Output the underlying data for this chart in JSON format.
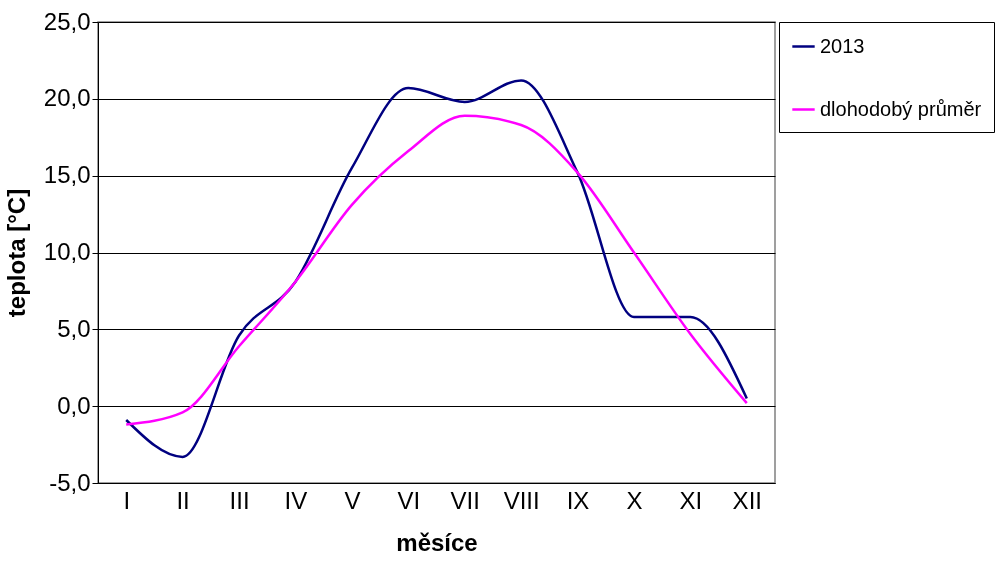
{
  "chart_data": {
    "type": "line",
    "xlabel": "měsíce",
    "ylabel": "teplota [°C]",
    "categories": [
      "I",
      "II",
      "III",
      "IV",
      "V",
      "VI",
      "VII",
      "VIII",
      "IX",
      "X",
      "XI",
      "XII"
    ],
    "series": [
      {
        "name": "2013",
        "color": "#000080",
        "values": [
          -0.9,
          -3.3,
          4.6,
          8.1,
          15.5,
          20.7,
          19.8,
          21.2,
          15.2,
          5.8,
          5.8,
          0.5
        ]
      },
      {
        "name": "dlohodobý průměr",
        "color": "#ff00ff",
        "values": [
          -1.2,
          -0.4,
          3.9,
          8.1,
          13.1,
          16.6,
          18.9,
          18.3,
          15.2,
          10.0,
          4.7,
          0.2
        ]
      }
    ],
    "ylim": [
      -5,
      25
    ],
    "yticks": [
      {
        "value": -5,
        "label": "-5,0"
      },
      {
        "value": 0,
        "label": "0,0"
      },
      {
        "value": 5,
        "label": "5,0"
      },
      {
        "value": 10,
        "label": "10,0"
      },
      {
        "value": 15,
        "label": "15,0"
      },
      {
        "value": 20,
        "label": "20,0"
      },
      {
        "value": 25,
        "label": "25,0"
      }
    ],
    "grid": "y",
    "legend": "right",
    "marker": "none",
    "line_style": "solid"
  }
}
